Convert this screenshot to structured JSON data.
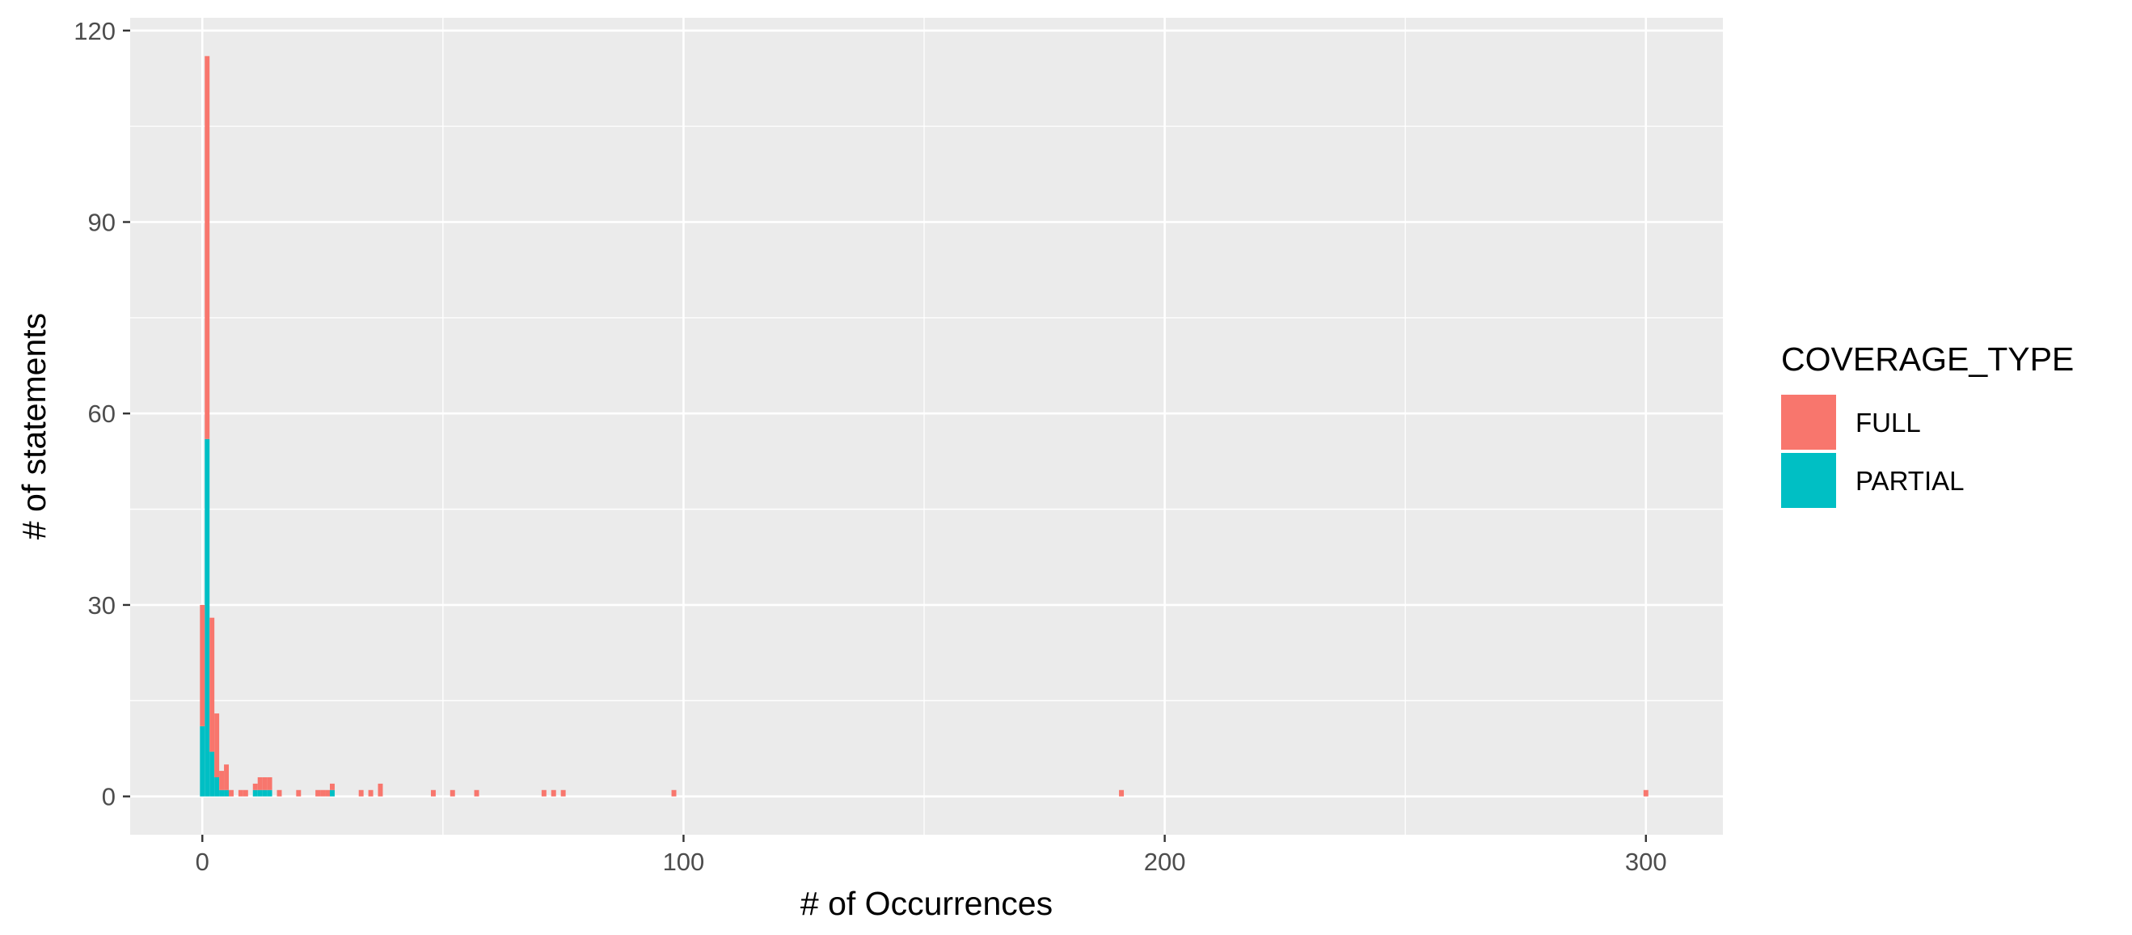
{
  "chart_data": {
    "type": "bar",
    "stacking": "stacked",
    "xlabel": "# of Occurrences",
    "ylabel": "# of statements",
    "xlim": [
      -15,
      316
    ],
    "ylim": [
      -6,
      122
    ],
    "x_ticks": [
      0,
      100,
      200,
      300
    ],
    "y_ticks": [
      0,
      30,
      60,
      90,
      120
    ],
    "x_tick_labels": [
      "0",
      "100",
      "200",
      "300"
    ],
    "y_tick_labels": [
      "0",
      "30",
      "60",
      "90",
      "120"
    ],
    "bin_width": 1,
    "grid": true,
    "legend": {
      "title": "COVERAGE_TYPE",
      "position": "right"
    },
    "colors": {
      "panel": "#ebebeb",
      "grid": "#ffffff",
      "FULL": "#F8766D",
      "PARTIAL": "#00BFC4"
    },
    "series": [
      {
        "name": "FULL",
        "x": [
          0,
          1,
          2,
          3,
          4,
          5,
          6,
          8,
          9,
          11,
          12,
          13,
          14,
          16,
          20,
          24,
          25,
          26,
          27,
          33,
          35,
          37,
          48,
          52,
          57,
          71,
          73,
          75,
          98,
          191,
          300
        ],
        "values": [
          19,
          60,
          21,
          10,
          3,
          4,
          1,
          1,
          1,
          1,
          2,
          2,
          2,
          1,
          1,
          1,
          1,
          1,
          1,
          1,
          1,
          2,
          1,
          1,
          1,
          1,
          1,
          1,
          1,
          1,
          1
        ]
      },
      {
        "name": "PARTIAL",
        "x": [
          0,
          1,
          2,
          3,
          4,
          5,
          11,
          12,
          13,
          14,
          27
        ],
        "values": [
          11,
          56,
          7,
          3,
          1,
          1,
          1,
          1,
          1,
          1,
          1
        ]
      }
    ]
  }
}
